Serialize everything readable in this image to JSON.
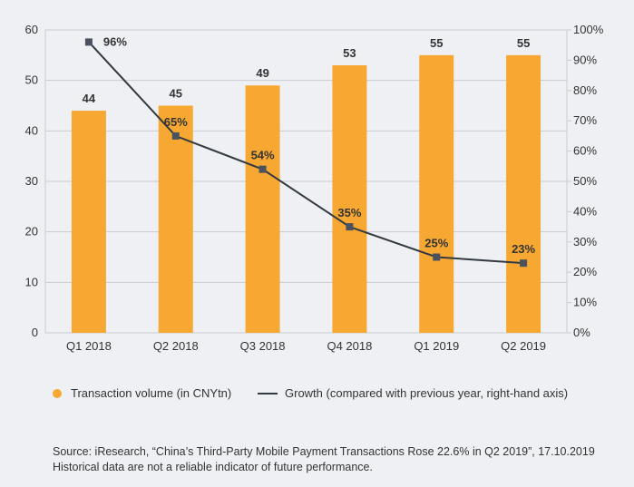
{
  "chart_data": {
    "type": "bar+line",
    "categories": [
      "Q1 2018",
      "Q2 2018",
      "Q3 2018",
      "Q4 2018",
      "Q1 2019",
      "Q2 2019"
    ],
    "series": [
      {
        "name": "Transaction volume (in CNYtn)",
        "type": "bar",
        "axis": "left",
        "values": [
          44,
          45,
          49,
          53,
          55,
          55
        ],
        "labels": [
          "44",
          "45",
          "49",
          "53",
          "55",
          "55"
        ],
        "color": "#f6a832"
      },
      {
        "name": "Growth (compared with previous year, right-hand axis)",
        "type": "line",
        "axis": "right",
        "values": [
          96,
          65,
          54,
          35,
          25,
          23
        ],
        "labels": [
          "96%",
          "65%",
          "54%",
          "35%",
          "25%",
          "23%"
        ],
        "color": "#333a42"
      }
    ],
    "y_left": {
      "min": 0,
      "max": 60,
      "ticks": [
        "0",
        "10",
        "20",
        "30",
        "40",
        "50",
        "60"
      ]
    },
    "y_right": {
      "min": 0,
      "max": 100,
      "ticks": [
        "0%",
        "10%",
        "20%",
        "30%",
        "40%",
        "50%",
        "60%",
        "70%",
        "80%",
        "90%",
        "100%"
      ]
    },
    "grid": true
  },
  "legend": {
    "bar_label": "Transaction volume (in CNYtn)",
    "line_label": "Growth (compared with previous year, right-hand axis)"
  },
  "source": {
    "line1": "Source: iResearch, “China’s Third-Party Mobile Payment Transactions Rose 22.6% in Q2 2019”, 17.10.2019",
    "line2": "Historical data are not a reliable indicator of future performance."
  }
}
